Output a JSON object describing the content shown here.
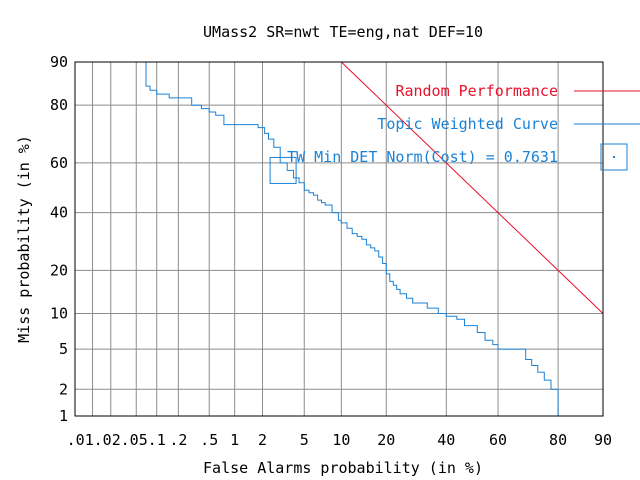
{
  "chart_data": {
    "type": "line",
    "title": "UMass2 SR=nwt TE=eng,nat DEF=10",
    "xlabel": "False Alarms probability (in %)",
    "ylabel": "Miss probability (in %)",
    "x_scale": "normal-deviate (probit)",
    "y_scale": "normal-deviate (probit)",
    "xlim": [
      0.005,
      90
    ],
    "ylim": [
      1,
      90
    ],
    "grid": true,
    "legend_position": "top-right, inside plot",
    "x_ticks": [
      {
        "value": 0.01,
        "label": ".01"
      },
      {
        "value": 0.02,
        "label": ".02"
      },
      {
        "value": 0.05,
        "label": ".05"
      },
      {
        "value": 0.1,
        "label": ".1"
      },
      {
        "value": 0.2,
        "label": ".2"
      },
      {
        "value": 0.5,
        "label": ".5"
      },
      {
        "value": 1,
        "label": "1"
      },
      {
        "value": 2,
        "label": "2"
      },
      {
        "value": 5,
        "label": "5"
      },
      {
        "value": 10,
        "label": "10"
      },
      {
        "value": 20,
        "label": "20"
      },
      {
        "value": 40,
        "label": "40"
      },
      {
        "value": 60,
        "label": "60"
      },
      {
        "value": 80,
        "label": "80"
      },
      {
        "value": 90,
        "label": "90"
      }
    ],
    "y_ticks": [
      {
        "value": 1,
        "label": "1"
      },
      {
        "value": 2,
        "label": "2"
      },
      {
        "value": 5,
        "label": "5"
      },
      {
        "value": 10,
        "label": "10"
      },
      {
        "value": 20,
        "label": "20"
      },
      {
        "value": 40,
        "label": "40"
      },
      {
        "value": 60,
        "label": "60"
      },
      {
        "value": 80,
        "label": "80"
      },
      {
        "value": 90,
        "label": "90"
      }
    ],
    "series": [
      {
        "name": "Random Performance",
        "color": "#e8102a",
        "style": "line",
        "x": [
          10,
          90
        ],
        "y": [
          90,
          10
        ]
      },
      {
        "name": "Topic Weighted Curve",
        "color": "#1a82d6",
        "style": "step",
        "x": [
          0.06,
          0.07,
          0.08,
          0.1,
          0.15,
          0.3,
          0.4,
          0.5,
          0.6,
          0.75,
          1.8,
          2.1,
          2.3,
          2.6,
          3.0,
          3.5,
          4.0,
          4.5,
          5.0,
          5.5,
          6.0,
          6.5,
          7.0,
          7.5,
          8.5,
          9.5,
          10.0,
          11,
          12,
          13,
          14,
          15,
          16,
          17,
          18,
          19,
          20,
          21,
          22,
          23,
          24,
          26,
          28,
          30,
          33,
          37,
          40,
          44,
          47,
          52,
          55,
          58,
          60,
          62,
          70,
          72,
          74,
          76,
          78,
          80
        ],
        "y": [
          90,
          85,
          84,
          83,
          82,
          80,
          79,
          78,
          77,
          74,
          73,
          71,
          69,
          66,
          60,
          57,
          54,
          52,
          49,
          48,
          47,
          45,
          44,
          43,
          40,
          37,
          36,
          34,
          32,
          31,
          30,
          28,
          27,
          26,
          24,
          22,
          19,
          17,
          16,
          15,
          14,
          13,
          12,
          12,
          11,
          10,
          9.5,
          9,
          8,
          7,
          6,
          5.5,
          5,
          5,
          4,
          3.5,
          3,
          2.5,
          2,
          1.6
        ]
      }
    ],
    "annotations": [
      {
        "text": "TW Min DET Norm(Cost) = 0.7631",
        "color": "#1a82d6",
        "point": {
          "x": 3.2,
          "y": 57
        },
        "marker": "square"
      }
    ]
  }
}
